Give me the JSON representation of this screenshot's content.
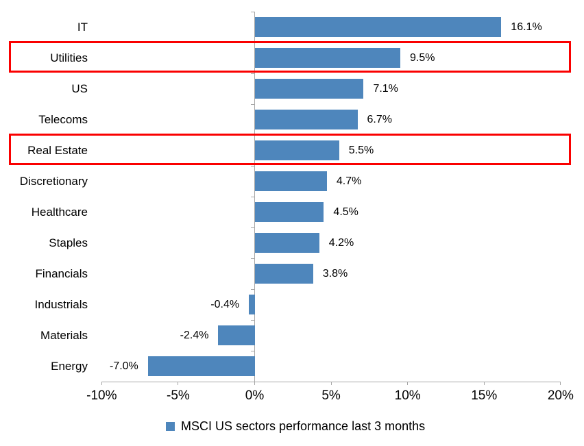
{
  "chart_data": {
    "type": "bar",
    "orientation": "horizontal",
    "title": "",
    "xlabel": "",
    "ylabel": "",
    "categories": [
      "IT",
      "Utilities",
      "US",
      "Telecoms",
      "Real Estate",
      "Discretionary",
      "Healthcare",
      "Staples",
      "Financials",
      "Industrials",
      "Materials",
      "Energy"
    ],
    "values": [
      16.1,
      9.5,
      7.1,
      6.7,
      5.5,
      4.7,
      4.5,
      4.2,
      3.8,
      -0.4,
      -2.4,
      -7.0
    ],
    "value_labels": [
      "16.1%",
      "9.5%",
      "7.1%",
      "6.7%",
      "5.5%",
      "4.7%",
      "4.5%",
      "4.2%",
      "3.8%",
      "-0.4%",
      "-2.4%",
      "-7.0%"
    ],
    "x_tick_values": [
      -10,
      -5,
      0,
      5,
      10,
      15,
      20
    ],
    "x_tick_labels": [
      "-10%",
      "-5%",
      "0%",
      "5%",
      "10%",
      "15%",
      "20%"
    ],
    "xlim": [
      -10,
      20
    ],
    "grid": false,
    "legend": {
      "label": "MSCI US sectors performance last 3 months",
      "position": "bottom"
    },
    "highlighted_categories": [
      "Utilities",
      "Real Estate"
    ],
    "colors": {
      "bar": "#4E86BC",
      "axis": "#A6A6A6",
      "highlight_border": "#FA0000",
      "text": "#000000",
      "background": "#FFFFFF"
    }
  }
}
